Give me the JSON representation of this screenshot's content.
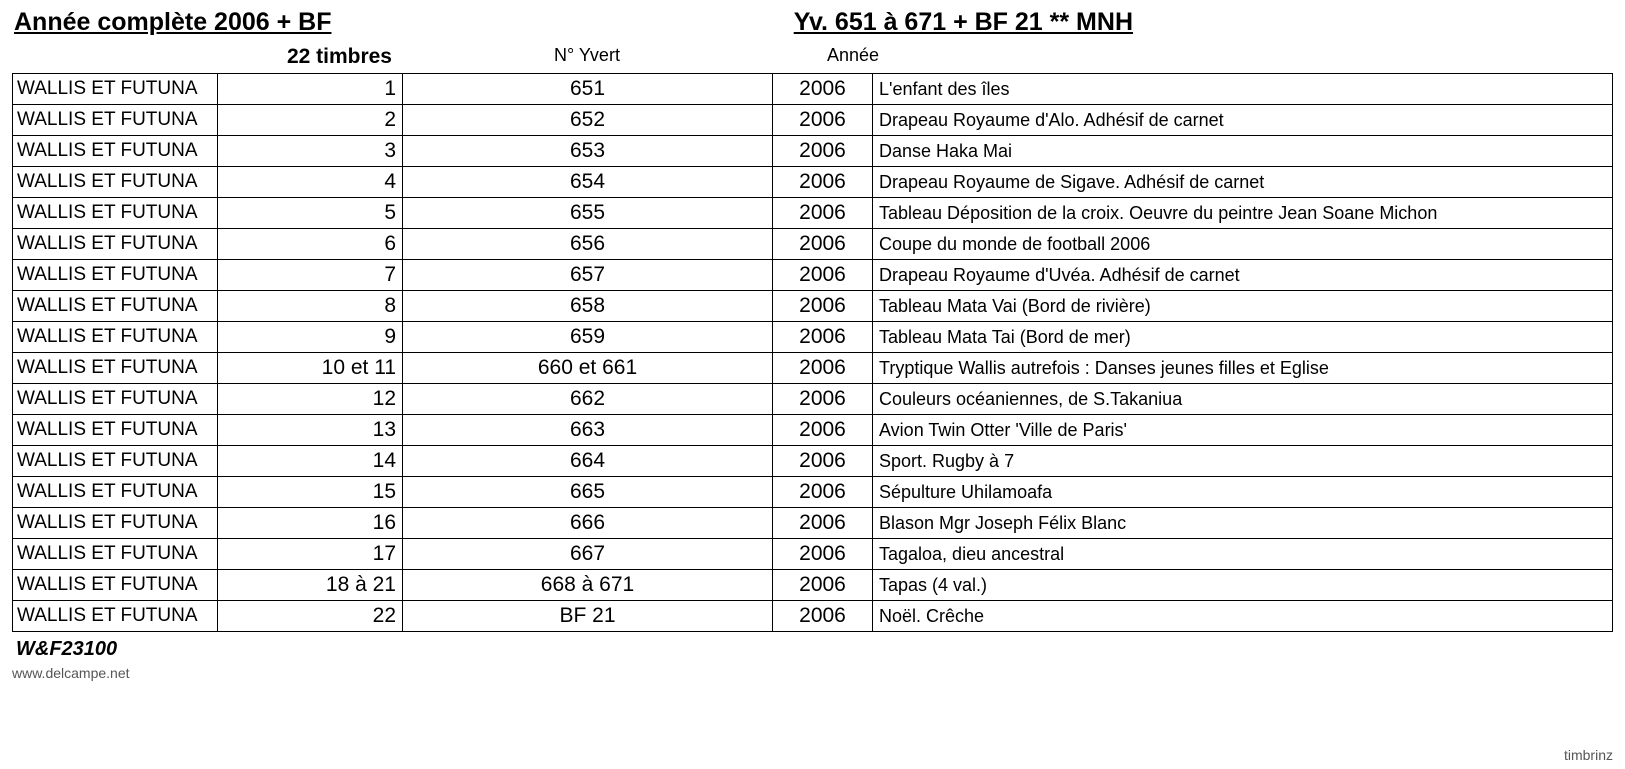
{
  "header": {
    "title_left": "Année complète 2006 + BF",
    "title_right": "Yv. 651 à 671 + BF 21    ** MNH"
  },
  "subheader": {
    "timbres": "22 timbres",
    "yvert": "N° Yvert",
    "annee": "Année"
  },
  "rows": [
    {
      "country": "WALLIS ET FUTUNA",
      "num": "1",
      "yvert": "651",
      "year": "2006",
      "desc": "L'enfant des îles"
    },
    {
      "country": "WALLIS ET FUTUNA",
      "num": "2",
      "yvert": "652",
      "year": "2006",
      "desc": "Drapeau Royaume d'Alo. Adhésif de carnet"
    },
    {
      "country": "WALLIS ET FUTUNA",
      "num": "3",
      "yvert": "653",
      "year": "2006",
      "desc": "Danse Haka Mai"
    },
    {
      "country": "WALLIS ET FUTUNA",
      "num": "4",
      "yvert": "654",
      "year": "2006",
      "desc": "Drapeau Royaume de Sigave. Adhésif de carnet"
    },
    {
      "country": "WALLIS ET FUTUNA",
      "num": "5",
      "yvert": "655",
      "year": "2006",
      "desc": "Tableau Déposition de la croix. Oeuvre du peintre Jean Soane Michon"
    },
    {
      "country": "WALLIS ET FUTUNA",
      "num": "6",
      "yvert": "656",
      "year": "2006",
      "desc": "Coupe du monde de football 2006"
    },
    {
      "country": "WALLIS ET FUTUNA",
      "num": "7",
      "yvert": "657",
      "year": "2006",
      "desc": "Drapeau Royaume d'Uvéa. Adhésif de carnet"
    },
    {
      "country": "WALLIS ET FUTUNA",
      "num": "8",
      "yvert": "658",
      "year": "2006",
      "desc": "Tableau Mata Vai (Bord de rivière)"
    },
    {
      "country": "WALLIS ET FUTUNA",
      "num": "9",
      "yvert": "659",
      "year": "2006",
      "desc": "Tableau Mata Tai (Bord de mer)"
    },
    {
      "country": "WALLIS ET FUTUNA",
      "num": "10 et 11",
      "yvert": "660 et 661",
      "year": "2006",
      "desc": "Tryptique Wallis autrefois : Danses jeunes filles et Eglise"
    },
    {
      "country": "WALLIS ET FUTUNA",
      "num": "12",
      "yvert": "662",
      "year": "2006",
      "desc": "Couleurs océaniennes, de S.Takaniua"
    },
    {
      "country": "WALLIS ET FUTUNA",
      "num": "13",
      "yvert": "663",
      "year": "2006",
      "desc": "Avion Twin Otter 'Ville de Paris'"
    },
    {
      "country": "WALLIS ET FUTUNA",
      "num": "14",
      "yvert": "664",
      "year": "2006",
      "desc": "Sport. Rugby à 7"
    },
    {
      "country": "WALLIS ET FUTUNA",
      "num": "15",
      "yvert": "665",
      "year": "2006",
      "desc": "Sépulture Uhilamoafa"
    },
    {
      "country": "WALLIS ET FUTUNA",
      "num": "16",
      "yvert": "666",
      "year": "2006",
      "desc": "Blason Mgr Joseph Félix Blanc"
    },
    {
      "country": "WALLIS ET FUTUNA",
      "num": "17",
      "yvert": "667",
      "year": "2006",
      "desc": "Tagaloa, dieu ancestral"
    },
    {
      "country": "WALLIS ET FUTUNA",
      "num": "18 à 21",
      "yvert": "668 à 671",
      "year": "2006",
      "desc": "Tapas (4 val.)"
    },
    {
      "country": "WALLIS ET FUTUNA",
      "num": "22",
      "yvert": "BF 21",
      "year": "2006",
      "desc": "Noël. Crêche"
    }
  ],
  "footer": {
    "code": "W&F23100",
    "url": "www.delcampe.net",
    "right": "timbrinz"
  },
  "styling": {
    "background_color": "#ffffff",
    "text_color": "#000000",
    "border_color": "#000000",
    "footer_text_color": "#555555",
    "title_fontsize": 25,
    "body_fontsize": 18,
    "cell_fontsize": 19,
    "num_fontsize": 21,
    "footer_fontsize": 14,
    "col_widths": {
      "country": 205,
      "num": 185,
      "yvert": 370,
      "year": 100
    }
  }
}
